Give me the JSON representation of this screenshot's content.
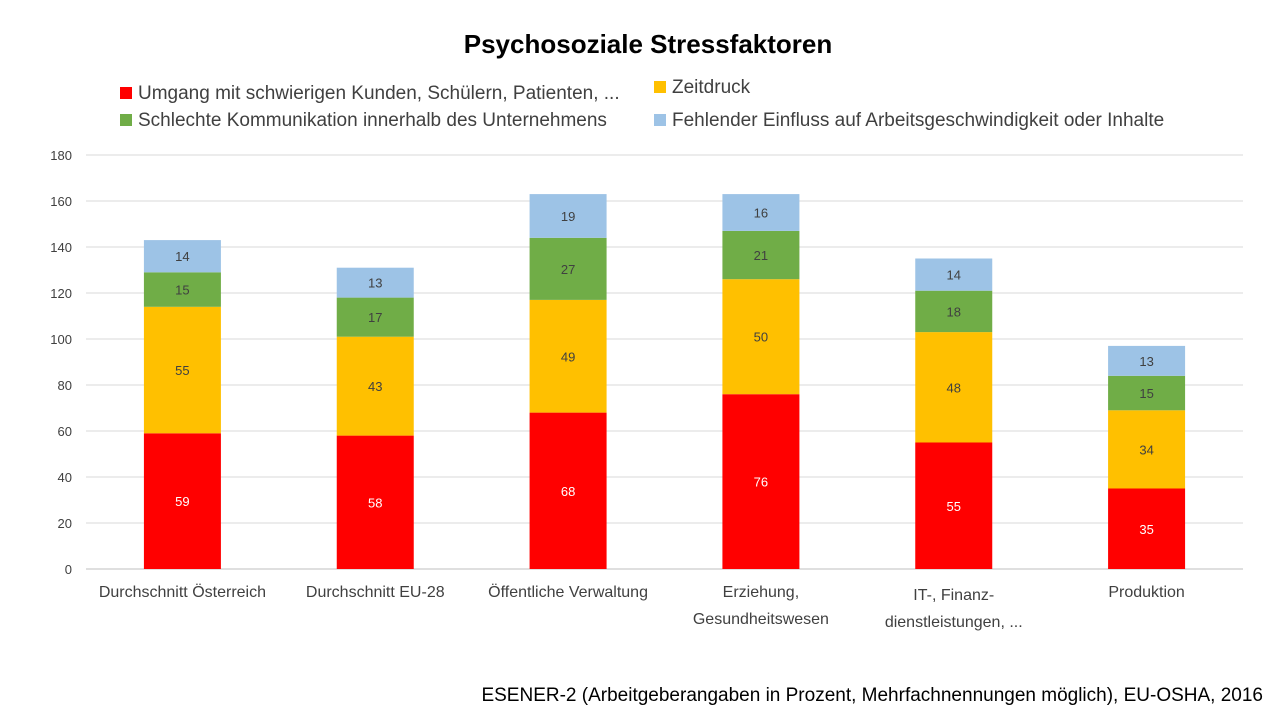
{
  "chart_data": {
    "type": "bar",
    "stacked": true,
    "title": "Psychosoziale Stressfaktoren",
    "source_note": "ESENER-2 (Arbeitgeberangaben in Prozent, Mehrfachnennungen möglich), EU-OSHA, 2016",
    "categories": [
      [
        "Durchschnitt Österreich"
      ],
      [
        "Durchschnitt EU-28"
      ],
      [
        "Öffentliche Verwaltung"
      ],
      [
        "Erziehung,",
        "Gesundheitswesen"
      ],
      [
        "IT-, Finanz-",
        "dienstleistungen, ..."
      ],
      [
        "Produktion"
      ]
    ],
    "series": [
      {
        "name": "Umgang mit schwierigen Kunden, Schülern, Patienten, ...",
        "color": "#ff0000",
        "label_color": "#ffffff",
        "values": [
          59,
          58,
          68,
          76,
          55,
          35
        ]
      },
      {
        "name": "Zeitdruck",
        "color": "#ffc000",
        "label_color": "#404040",
        "values": [
          55,
          43,
          49,
          50,
          48,
          34
        ]
      },
      {
        "name": "Schlechte Kommunikation innerhalb des Unternehmens",
        "color": "#70ad47",
        "label_color": "#404040",
        "values": [
          15,
          17,
          27,
          21,
          18,
          15
        ]
      },
      {
        "name": "Fehlender Einfluss auf Arbeitsgeschwindigkeit oder Inhalte",
        "color": "#9dc3e6",
        "label_color": "#404040",
        "values": [
          14,
          13,
          19,
          16,
          14,
          13
        ]
      }
    ],
    "ylim": [
      0,
      180
    ],
    "yticks": [
      0,
      20,
      40,
      60,
      80,
      100,
      120,
      140,
      160,
      180
    ],
    "grid": true,
    "legend_position": "top"
  }
}
